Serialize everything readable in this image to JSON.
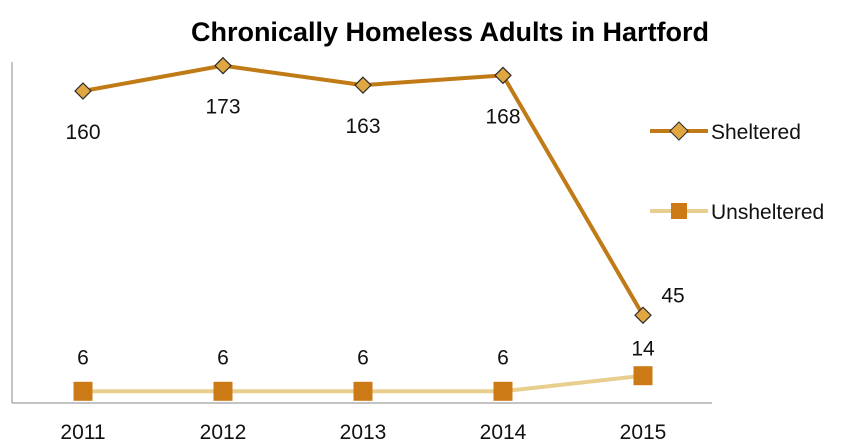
{
  "chart_data": {
    "type": "line",
    "title": "Chronically Homeless Adults in Hartford",
    "categories": [
      "2011",
      "2012",
      "2013",
      "2014",
      "2015"
    ],
    "series": [
      {
        "name": "Sheltered",
        "values": [
          160,
          173,
          163,
          168,
          45
        ],
        "color": "#c07a16",
        "marker": "diamond",
        "marker_fill": "#dfa641",
        "marker_stroke": "#2b2b2b"
      },
      {
        "name": "Unsheltered",
        "values": [
          6,
          6,
          6,
          6,
          14
        ],
        "color": "#e9cf8f",
        "marker": "square",
        "marker_fill": "#cc7a16",
        "marker_stroke": "#cc7a16"
      }
    ],
    "data_labels": true,
    "ylim": [
      0,
      180
    ],
    "y_axis_ticks_shown": false,
    "grid": false,
    "legend_position": "right",
    "xlabel": "",
    "ylabel": ""
  }
}
